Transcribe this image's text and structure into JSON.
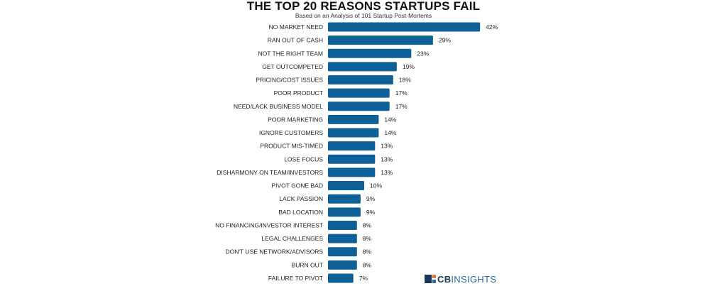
{
  "chart_data": {
    "type": "bar",
    "orientation": "horizontal",
    "title": "THE TOP 20 REASONS STARTUPS FAIL",
    "subtitle": "Based on an Analysis of 101 Startup Post-Mortems",
    "categories": [
      "NO MARKET NEED",
      "RAN OUT OF CASH",
      "NOT THE RIGHT TEAM",
      "GET OUTCOMPETED",
      "PRICING/COST ISSUES",
      "POOR PRODUCT",
      "NEED/LACK BUSINESS MODEL",
      "POOR MARKETING",
      "IGNORE CUSTOMERS",
      "PRODUCT MIS-TIMED",
      "LOSE FOCUS",
      "DISHARMONY ON TEAM/INVESTORS",
      "PIVOT GONE BAD",
      "LACK PASSION",
      "BAD LOCATION",
      "NO FINANCING/INVESTOR INTEREST",
      "LEGAL CHALLENGES",
      "DON'T USE NETWORK/ADVISORS",
      "BURN OUT",
      "FAILURE TO PIVOT"
    ],
    "values": [
      42,
      29,
      23,
      19,
      18,
      17,
      17,
      14,
      14,
      13,
      13,
      13,
      10,
      9,
      9,
      8,
      8,
      8,
      8,
      7
    ],
    "value_suffix": "%",
    "grid": false,
    "bar_color": "#0f6096"
  },
  "logo": {
    "part1": "CB",
    "part2": "INSIGHTS",
    "icon_colors": [
      "#1d3557",
      "#e8762c"
    ]
  }
}
